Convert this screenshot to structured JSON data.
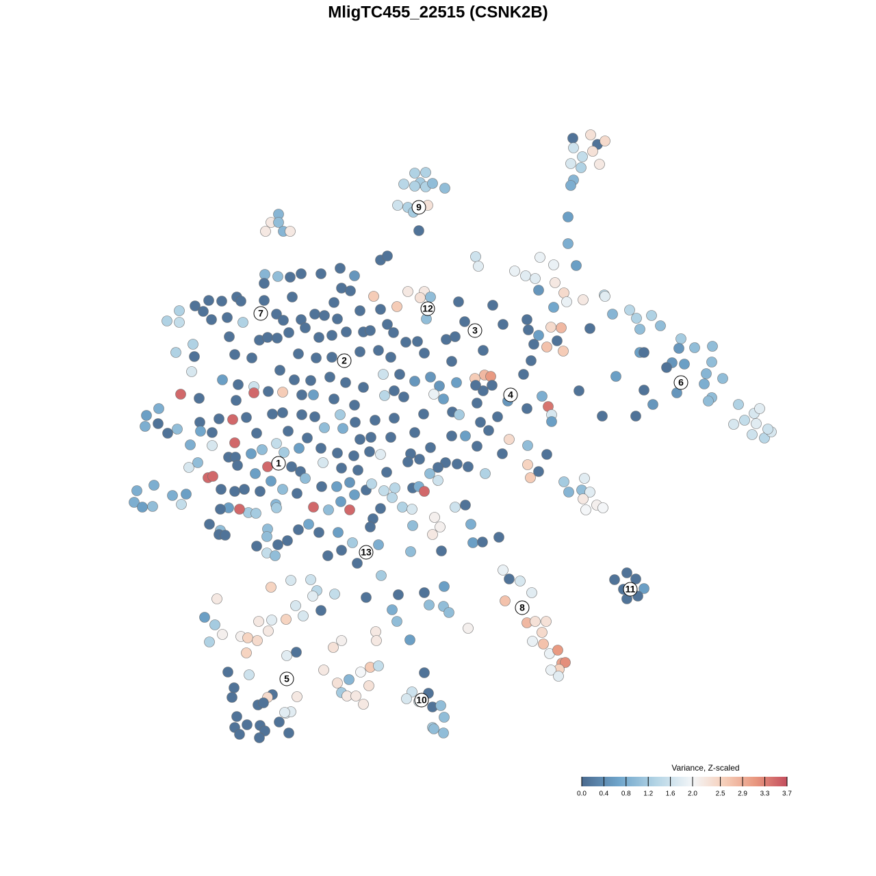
{
  "chart_data": {
    "type": "scatter",
    "title": "MligTC455_22515 (CSNK2B)",
    "xlim": [
      0,
      1280
    ],
    "ylim": [
      1280,
      0
    ],
    "x": [
      837,
      863,
      873,
      884,
      866,
      838,
      851,
      834,
      849,
      876,
      838,
      834,
      830,
      830,
      842,
      606,
      622,
      614,
      590,
      606,
      622,
      632,
      650,
      581,
      596,
      625,
      604,
      612,
      407,
      396,
      407,
      388,
      414,
      424,
      556,
      566,
      497,
      469,
      440,
      424,
      406,
      387,
      386,
      518,
      499,
      512,
      488,
      427,
      386,
      346,
      352,
      324,
      305,
      285,
      297,
      262,
      244,
      262,
      309,
      332,
      355,
      404,
      414,
      440,
      460,
      474,
      493,
      526,
      556,
      566,
      546,
      580,
      596,
      620,
      614,
      629,
      623,
      670,
      720,
      679,
      735,
      770,
      772,
      787,
      335,
      379,
      391,
      405,
      422,
      446,
      466,
      485,
      506,
      531,
      541,
      575,
      593,
      610,
      652,
      665,
      282,
      257,
      284,
      343,
      368,
      436,
      462,
      485,
      526,
      553,
      571,
      620,
      660,
      706,
      780,
      776,
      280,
      325,
      348,
      371,
      392,
      409,
      430,
      454,
      482,
      505,
      531,
      560,
      584,
      606,
      629,
      642,
      667,
      694,
      708,
      717,
      719,
      706,
      695,
      765,
      264,
      291,
      345,
      371,
      413,
      441,
      458,
      488,
      518,
      562,
      576,
      590,
      634,
      648,
      697,
      742,
      770,
      792,
      801,
      806,
      214,
      232,
      212,
      231,
      259,
      245,
      292,
      320,
      340,
      360,
      398,
      413,
      441,
      460,
      497,
      519,
      548,
      576,
      619,
      661,
      671,
      702,
      727,
      806,
      278,
      293,
      310,
      343,
      375,
      404,
      421,
      449,
      474,
      501,
      526,
      542,
      571,
      606,
      629,
      660,
      680,
      714,
      744,
      771,
      310,
      334,
      344,
      367,
      383,
      415,
      437,
      469,
      493,
      517,
      540,
      556,
      600,
      613,
      651,
      668,
      684,
      697,
      734,
      799,
      276,
      289,
      347,
      373,
      391,
      404,
      426,
      439,
      446,
      472,
      499,
      523,
      565,
      596,
      628,
      640,
      709,
      771,
      775,
      787,
      304,
      311,
      225,
      200,
      196,
      208,
      223,
      252,
      265,
      272,
      323,
      343,
      357,
      380,
      396,
      413,
      434,
      470,
      492,
      511,
      535,
      543,
      561,
      577,
      603,
      612,
      620,
      640,
      573,
      588,
      518,
      498,
      403,
      363,
      350,
      334,
      322,
      374,
      404,
      458,
      480,
      511,
      556,
      602,
      665,
      680,
      635,
      545,
      451,
      436,
      306,
      322,
      320,
      329,
      391,
      390,
      420,
      466,
      494,
      541,
      603,
      643,
      632,
      688,
      691,
      705,
      729,
      375,
      406,
      515,
      553,
      499,
      479,
      522,
      390,
      402,
      600,
      645,
      557,
      735,
      744,
      760,
      777,
      738,
      770,
      782,
      798,
      792,
      778,
      794,
      803,
      815,
      821,
      826,
      817,
      805,
      816,
      916,
      898,
      929,
      941,
      932,
      916,
      911,
      695,
      699,
      752,
      789,
      768,
      782,
      809,
      811,
      824,
      828,
      852,
      883,
      884,
      809,
      805,
      820,
      814,
      799,
      823,
      787,
      862,
      895,
      920,
      930,
      952,
      935,
      965,
      935,
      941,
      995,
      992,
      1015,
      1041,
      1040,
      982,
      974,
      1000,
      1032,
      1056,
      1029,
      900,
      846,
      941,
      989,
      1040,
      1035,
      954,
      880,
      929,
      1079,
      1088,
      1102,
      1110,
      1072,
      1105,
      1099,
      1117,
      1127,
      1122,
      824,
      831,
      854,
      850,
      862,
      852,
      856,
      872,
      881,
      396,
      425,
      454,
      463,
      489,
      457,
      432,
      443,
      418,
      397,
      469,
      317,
      299,
      314,
      325,
      306,
      352,
      362,
      376,
      392,
      378,
      360,
      419,
      433,
      499,
      487,
      473,
      527,
      541,
      553,
      333,
      364,
      342,
      339,
      398,
      391,
      434,
      377,
      385,
      493,
      510,
      539,
      499,
      507,
      520,
      531,
      346,
      361,
      343,
      380,
      387,
      379,
      350,
      408,
      418,
      425,
      416,
      422,
      535,
      573,
      580,
      582,
      620,
      649,
      627,
      648,
      656,
      684,
      549,
      550,
      599,
      620,
      602,
      626,
      594,
      612,
      632,
      644,
      649,
      632,
      634,
      648
    ],
    "y": [
      202,
      197,
      211,
      206,
      221,
      216,
      229,
      239,
      245,
      240,
      263,
      271,
      317,
      356,
      388,
      253,
      252,
      267,
      269,
      272,
      273,
      268,
      275,
      300,
      303,
      300,
      310,
      337,
      313,
      325,
      325,
      338,
      338,
      338,
      380,
      374,
      392,
      400,
      400,
      405,
      404,
      401,
      414,
      403,
      421,
      425,
      442,
      434,
      439,
      434,
      440,
      440,
      439,
      447,
      455,
      454,
      469,
      471,
      467,
      464,
      471,
      459,
      468,
      467,
      459,
      461,
      466,
      454,
      452,
      474,
      433,
      448,
      426,
      426,
      435,
      434,
      466,
      441,
      446,
      470,
      474,
      467,
      482,
      424,
      492,
      497,
      493,
      494,
      486,
      479,
      493,
      490,
      485,
      485,
      483,
      486,
      500,
      499,
      496,
      492,
      503,
      515,
      521,
      518,
      523,
      517,
      523,
      522,
      514,
      512,
      522,
      516,
      528,
      512,
      503,
      527,
      543,
      555,
      562,
      565,
      572,
      541,
      555,
      556,
      551,
      559,
      566,
      547,
      547,
      557,
      551,
      564,
      559,
      553,
      548,
      550,
      563,
      571,
      563,
      547,
      576,
      582,
      585,
      574,
      573,
      577,
      577,
      583,
      592,
      578,
      571,
      580,
      576,
      583,
      589,
      586,
      597,
      579,
      594,
      606,
      607,
      597,
      623,
      619,
      627,
      633,
      617,
      612,
      613,
      610,
      605,
      603,
      606,
      609,
      606,
      617,
      614,
      611,
      605,
      602,
      606,
      617,
      609,
      616,
      650,
      630,
      632,
      647,
      633,
      648,
      630,
      640,
      625,
      626,
      642,
      639,
      639,
      632,
      654,
      637,
      637,
      629,
      642,
      651,
      651,
      668,
      668,
      663,
      657,
      661,
      655,
      655,
      662,
      666,
      660,
      664,
      663,
      671,
      676,
      678,
      682,
      652,
      663,
      664,
      683,
      676,
      680,
      692,
      682,
      677,
      682,
      689,
      699,
      676,
      684,
      687,
      690,
      675,
      692,
      683,
      692,
      679,
      698,
      689,
      698,
      696,
      709,
      717,
      734,
      741,
      740,
      724,
      737,
      722,
      715,
      718,
      715,
      718,
      703,
      715,
      721,
      711,
      711,
      705,
      716,
      707,
      717,
      713,
      713,
      711,
      718,
      702,
      727,
      741,
      723,
      733,
      737,
      749,
      744,
      742,
      744,
      750,
      742,
      741,
      745,
      745,
      743,
      744,
      741,
      738,
      756,
      758,
      766,
      774,
      766,
      775,
      781,
      782,
      773,
      784,
      790,
      778,
      778,
      770,
      768,
      770,
      781,
      766,
      793,
      792,
      785,
      798,
      796,
      793,
      796,
      804,
      812,
      823,
      808,
      812,
      806,
      805,
      841,
      833,
      846,
      849,
      866,
      878,
      910,
      908,
      908,
      924,
      937,
      941,
      955,
      950,
      969,
      968,
      978,
      979,
      988,
      837,
      847,
      846,
      860,
      871,
      875,
      861,
      375,
      389,
      396,
      376,
      403,
      407,
      387,
      413,
      428,
      441,
      438,
      431,
      433,
      449,
      478,
      479,
      498,
      507,
      513,
      490,
      480,
      459,
      453,
      465,
      461,
      481,
      476,
      515,
      515,
      495,
      509,
      508,
      506,
      529,
      530,
      537,
      532,
      546,
      553,
      561,
      550,
      571,
      570,
      574,
      581,
      586,
      591,
      608,
      608,
      591,
      614,
      604,
      597,
      620,
      619,
      635,
      640,
      631,
      627,
      704,
      719,
      699,
      716,
      719,
      729,
      745,
      738,
      742,
      858,
      848,
      847,
      863,
      868,
      871,
      885,
      900,
      905,
      906,
      892,
      875,
      902,
      913,
      927,
      938,
      930,
      932,
      936,
      922,
      908,
      954,
      958,
      953,
      936,
      946,
      979,
      982,
      975,
      973,
      982,
      986,
      1005,
      1019,
      1015,
      1019,
      1018,
      1030,
      1027,
      998,
      993,
      1002,
      1012,
      1017,
      1017,
      1029,
      1047,
      1059,
      1063,
      1060,
      1068,
      1078,
      1073,
      1055,
      1042,
      1040,
      1041,
      1071,
      873,
      891,
      908,
      869,
      866,
      857,
      884,
      886,
      895,
      918,
      923,
      936,
      935,
      983,
      1011,
      1013,
      1021,
      1025,
      1033,
      1031,
      1048,
      1063,
      1065,
      1071
    ],
    "values": [
      0.1,
      2.3,
      0.1,
      2.4,
      2.3,
      1.6,
      1.5,
      1.7,
      1.3,
      2.2,
      0.9,
      0.8,
      0.6,
      0.8,
      0.6,
      1.3,
      1.3,
      1.2,
      1.4,
      1.3,
      1.3,
      1.0,
      1.0,
      1.6,
      1.3,
      2.3,
      1.2,
      0.1,
      0.9,
      2.2,
      1.0,
      2.2,
      0.9,
      2.2,
      0.1,
      0.1,
      0.1,
      0.1,
      0.1,
      0.1,
      1.0,
      0.9,
      0.1,
      0.5,
      0.1,
      0.1,
      0.1,
      0.1,
      0.1,
      0.1,
      0.1,
      0.1,
      0.1,
      0.1,
      0.1,
      1.3,
      1.3,
      1.5,
      0.1,
      0.1,
      1.3,
      0.1,
      0.1,
      0.1,
      0.1,
      0.1,
      0.1,
      0.1,
      0.1,
      0.1,
      2.6,
      2.6,
      2.2,
      2.2,
      2.3,
      1.0,
      1.0,
      0.1,
      0.1,
      0.1,
      0.1,
      0.1,
      0.1,
      0.5,
      0.1,
      0.1,
      0.1,
      0.1,
      0.1,
      0.1,
      0.1,
      0.1,
      0.1,
      0.1,
      0.1,
      0.1,
      0.1,
      0.1,
      0.1,
      0.1,
      1.3,
      1.3,
      0.1,
      0.1,
      0.1,
      0.1,
      0.1,
      0.1,
      0.1,
      0.1,
      0.1,
      0.1,
      0.1,
      0.1,
      0.1,
      0.1,
      1.7,
      0.6,
      0.1,
      1.6,
      0.1,
      0.1,
      0.1,
      0.1,
      0.1,
      0.1,
      0.1,
      1.6,
      0.1,
      0.5,
      0.5,
      0.5,
      0.6,
      2.6,
      2.8,
      3.1,
      0.1,
      0.1,
      0.1,
      0.1,
      3.5,
      0.1,
      0.1,
      3.5,
      2.6,
      0.1,
      0.6,
      0.1,
      0.1,
      1.4,
      0.1,
      0.1,
      1.9,
      0.6,
      0.1,
      0.5,
      0.1,
      0.8,
      3.4,
      1.7,
      0.6,
      0.8,
      0.8,
      0.1,
      1.0,
      0.1,
      0.1,
      0.1,
      3.5,
      0.1,
      0.1,
      0.1,
      0.1,
      0.1,
      1.2,
      0.1,
      0.1,
      0.1,
      0.1,
      0.1,
      1.2,
      0.1,
      0.1,
      0.6,
      0.8,
      0.7,
      0.1,
      3.5,
      0.1,
      1.5,
      0.1,
      0.1,
      1.0,
      0.8,
      0.1,
      0.1,
      0.1,
      0.1,
      0.1,
      0.1,
      0.6,
      0.1,
      2.4,
      1.0,
      1.7,
      0.1,
      0.1,
      0.6,
      1.0,
      1.2,
      0.6,
      0.1,
      0.1,
      0.1,
      0.1,
      1.8,
      0.1,
      0.1,
      0.1,
      0.1,
      0.1,
      0.1,
      0.1,
      0.1,
      1.7,
      1.0,
      0.1,
      0.6,
      3.5,
      0.1,
      0.1,
      0.1,
      1.0,
      1.7,
      0.1,
      0.1,
      0.1,
      0.1,
      1.0,
      0.1,
      1.3,
      2.5,
      2.6,
      0.1,
      3.5,
      3.5,
      0.8,
      0.8,
      0.8,
      0.6,
      1.0,
      0.8,
      1.5,
      0.6,
      0.1,
      0.1,
      0.1,
      0.1,
      0.6,
      1.0,
      0.1,
      0.1,
      0.6,
      0.5,
      0.1,
      1.4,
      1.5,
      1.4,
      0.1,
      0.8,
      3.5,
      1.6,
      1.4,
      1.3,
      0.6,
      0.6,
      0.9,
      1.2,
      3.5,
      0.6,
      0.1,
      1.2,
      1.2,
      3.5,
      1.0,
      3.5,
      0.1,
      1.7,
      1.6,
      0.1,
      2.1,
      0.1,
      0.7,
      0.1,
      0.1,
      1.0,
      0.1,
      0.1,
      1.0,
      1.0,
      0.1,
      0.1,
      0.6,
      0.1,
      1.0,
      2.1,
      2.2,
      0.8,
      0.6,
      0.1,
      0.1,
      0.1,
      0.1,
      1.2,
      0.8,
      0.1,
      0.1,
      0.1,
      1.5,
      1.0,
      1.0,
      0.1,
      1.2,
      1.9,
      0.1,
      1.7,
      1.8,
      2.7,
      2.8,
      2.3,
      2.3,
      2.4,
      1.9,
      2.7,
      1.9,
      3.1,
      3.0,
      3.2,
      2.5,
      1.9,
      1.8,
      0.1,
      0.1,
      0.1,
      0.6,
      0.1,
      0.1,
      0.1,
      1.6,
      1.8,
      1.9,
      1.9,
      1.8,
      1.8,
      1.9,
      2.2,
      2.4,
      1.9,
      2.2,
      1.4,
      1.8,
      0.7,
      2.4,
      2.8,
      0.1,
      2.7,
      2.6,
      0.6,
      0.1,
      0.9,
      1.4,
      1.3,
      1.3,
      1.0,
      1.0,
      0.6,
      0.1,
      1.2,
      0.5,
      1.0,
      1.0,
      1.0,
      0.5,
      0.1,
      0.6,
      0.9,
      1.0,
      0.8,
      0.6,
      0.1,
      0.1,
      0.5,
      1.0,
      1.0,
      0.5,
      0.1,
      0.1,
      1.3,
      1.5,
      1.7,
      1.8,
      1.7,
      1.8,
      1.6,
      1.4,
      1.7,
      1.6,
      1.2,
      0.9,
      1.8,
      1.0,
      1.8,
      2.2,
      2.0,
      2.1,
      2.0,
      2.5,
      1.7,
      1.6,
      1.4,
      1.5,
      1.8,
      1.7,
      1.7,
      2.5,
      1.8,
      0.1,
      2.2,
      0.6,
      1.2,
      2.1,
      1.3,
      2.1,
      2.5,
      2.4,
      2.2,
      2.2,
      2.5,
      1.8,
      0.1,
      2.1,
      2.3,
      2.2,
      2.0,
      2.6,
      1.5,
      0.1,
      1.6,
      0.1,
      0.1,
      0.1,
      2.4,
      2.2,
      0.1,
      0.1,
      2.3,
      0.9,
      2.3,
      1.2,
      2.2,
      2.2,
      2.2,
      0.1,
      0.1,
      0.1,
      0.1,
      0.1,
      0.1,
      0.1,
      0.1,
      1.8,
      1.8,
      1.8,
      0.1,
      0.1,
      0.8,
      1.0,
      0.1,
      0.1,
      0.6,
      1.0,
      1.0,
      1.0,
      2.1,
      2.2,
      2.2,
      0.6,
      0.1,
      1.6,
      0.1,
      1.7,
      1.7,
      0.1,
      1.0,
      1.0,
      1.2,
      1.0,
      1.0
    ],
    "cluster_labels": [
      {
        "label": "1",
        "x": 407,
        "y": 677
      },
      {
        "label": "2",
        "x": 503,
        "y": 527
      },
      {
        "label": "3",
        "x": 694,
        "y": 483
      },
      {
        "label": "4",
        "x": 746,
        "y": 577
      },
      {
        "label": "5",
        "x": 419,
        "y": 992
      },
      {
        "label": "6",
        "x": 995,
        "y": 559
      },
      {
        "label": "7",
        "x": 381,
        "y": 458
      },
      {
        "label": "8",
        "x": 763,
        "y": 888
      },
      {
        "label": "9",
        "x": 612,
        "y": 303
      },
      {
        "label": "10",
        "x": 616,
        "y": 1023
      },
      {
        "label": "11",
        "x": 921,
        "y": 861
      },
      {
        "label": "12",
        "x": 625,
        "y": 451
      },
      {
        "label": "13",
        "x": 535,
        "y": 807
      }
    ],
    "colorbar": {
      "title": "Variance, Z-scaled",
      "zlim": [
        0,
        3.7
      ],
      "zmid": 2,
      "colors": [
        "#4a6a8f",
        "#6fa5cb",
        "#b3d4e5",
        "#f4f6f8",
        "#f6cfba",
        "#e8977f",
        "#c44e5e"
      ],
      "ticks": [
        {
          "value": 0,
          "label": "0.0"
        },
        0.4,
        0.8,
        1.2,
        1.6,
        {
          "value": 2,
          "label": "2.0"
        },
        2.5,
        2.9,
        3.3,
        3.7
      ]
    }
  }
}
